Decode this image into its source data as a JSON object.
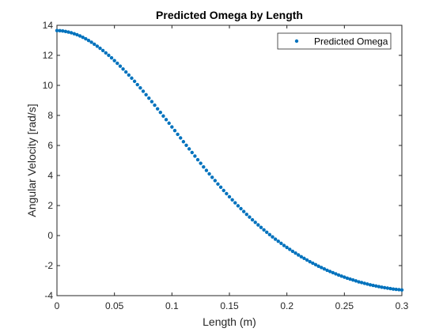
{
  "chart_data": {
    "type": "scatter",
    "title": "Predicted Omega by Length",
    "xlabel": "Length (m)",
    "ylabel": "Angular Velocity [rad/s]",
    "xlim": [
      0,
      0.3
    ],
    "ylim": [
      -4,
      14
    ],
    "xticks": [
      0,
      0.05,
      0.1,
      0.15,
      0.2,
      0.25,
      0.3
    ],
    "xtick_labels": [
      "0",
      "0.05",
      "0.1",
      "0.15",
      "0.2",
      "0.25",
      "0.3"
    ],
    "yticks": [
      -4,
      -2,
      0,
      2,
      4,
      6,
      8,
      10,
      12,
      14
    ],
    "ytick_labels": [
      "-4",
      "-2",
      "0",
      "2",
      "4",
      "6",
      "8",
      "10",
      "12",
      "14"
    ],
    "grid": false,
    "legend": {
      "placement": "top-right",
      "entries": [
        "Predicted Omega"
      ]
    },
    "series": [
      {
        "name": "Predicted Omega",
        "color": "#0072bd",
        "marker": "dot",
        "x": [
          0,
          0.0025,
          0.005,
          0.0075,
          0.01,
          0.0125,
          0.015,
          0.0175,
          0.02,
          0.0225,
          0.025,
          0.0275,
          0.03,
          0.0325,
          0.035,
          0.0375,
          0.04,
          0.0425,
          0.045,
          0.0475,
          0.05,
          0.0525,
          0.055,
          0.0575,
          0.06,
          0.0625,
          0.065,
          0.0675,
          0.07,
          0.0725,
          0.075,
          0.0775,
          0.08,
          0.0825,
          0.085,
          0.0875,
          0.09,
          0.0925,
          0.095,
          0.0975,
          0.1,
          0.1025,
          0.105,
          0.1075,
          0.11,
          0.1125,
          0.115,
          0.1175,
          0.12,
          0.1225,
          0.125,
          0.1275,
          0.13,
          0.1325,
          0.135,
          0.1375,
          0.14,
          0.1425,
          0.145,
          0.1475,
          0.15,
          0.1525,
          0.155,
          0.1575,
          0.16,
          0.1625,
          0.165,
          0.1675,
          0.17,
          0.1725,
          0.175,
          0.1775,
          0.18,
          0.1825,
          0.185,
          0.1875,
          0.19,
          0.1925,
          0.195,
          0.1975,
          0.2,
          0.2025,
          0.205,
          0.2075,
          0.21,
          0.2125,
          0.215,
          0.2175,
          0.22,
          0.2225,
          0.225,
          0.2275,
          0.23,
          0.2325,
          0.235,
          0.2375,
          0.24,
          0.2425,
          0.245,
          0.2475,
          0.25,
          0.2525,
          0.255,
          0.2575,
          0.26,
          0.2625,
          0.265,
          0.2675,
          0.27,
          0.2725,
          0.275,
          0.2775,
          0.28,
          0.2825,
          0.285,
          0.2875,
          0.29,
          0.2925,
          0.295,
          0.2975,
          0.3
        ],
        "y": [
          13.65,
          13.64,
          13.62,
          13.59,
          13.55,
          13.5,
          13.44,
          13.37,
          13.29,
          13.2,
          13.1,
          12.99,
          12.87,
          12.74,
          12.61,
          12.47,
          12.32,
          12.16,
          12,
          11.83,
          11.65,
          11.47,
          11.28,
          11.09,
          10.89,
          10.69,
          10.48,
          10.27,
          10.05,
          9.83,
          9.61,
          9.38,
          9.15,
          8.92,
          8.68,
          8.44,
          8.2,
          7.96,
          7.72,
          7.48,
          7.23,
          6.99,
          6.74,
          6.5,
          6.25,
          6.01,
          5.77,
          5.53,
          5.29,
          5.05,
          4.81,
          4.57,
          4.34,
          4.11,
          3.88,
          3.66,
          3.43,
          3.22,
          3,
          2.79,
          2.58,
          2.38,
          2.18,
          1.98,
          1.79,
          1.6,
          1.41,
          1.23,
          1.05,
          0.88,
          0.71,
          0.54,
          0.38,
          0.22,
          0.06,
          -0.09,
          -0.24,
          -0.38,
          -0.52,
          -0.66,
          -0.79,
          -0.92,
          -1.05,
          -1.17,
          -1.29,
          -1.41,
          -1.52,
          -1.63,
          -1.74,
          -1.84,
          -1.94,
          -2.04,
          -2.13,
          -2.22,
          -2.31,
          -2.39,
          -2.47,
          -2.55,
          -2.63,
          -2.7,
          -2.77,
          -2.84,
          -2.9,
          -2.96,
          -3.02,
          -3.08,
          -3.13,
          -3.18,
          -3.23,
          -3.28,
          -3.32,
          -3.36,
          -3.4,
          -3.44,
          -3.47,
          -3.5,
          -3.53,
          -3.56,
          -3.58,
          -3.6,
          -3.62
        ]
      }
    ]
  }
}
